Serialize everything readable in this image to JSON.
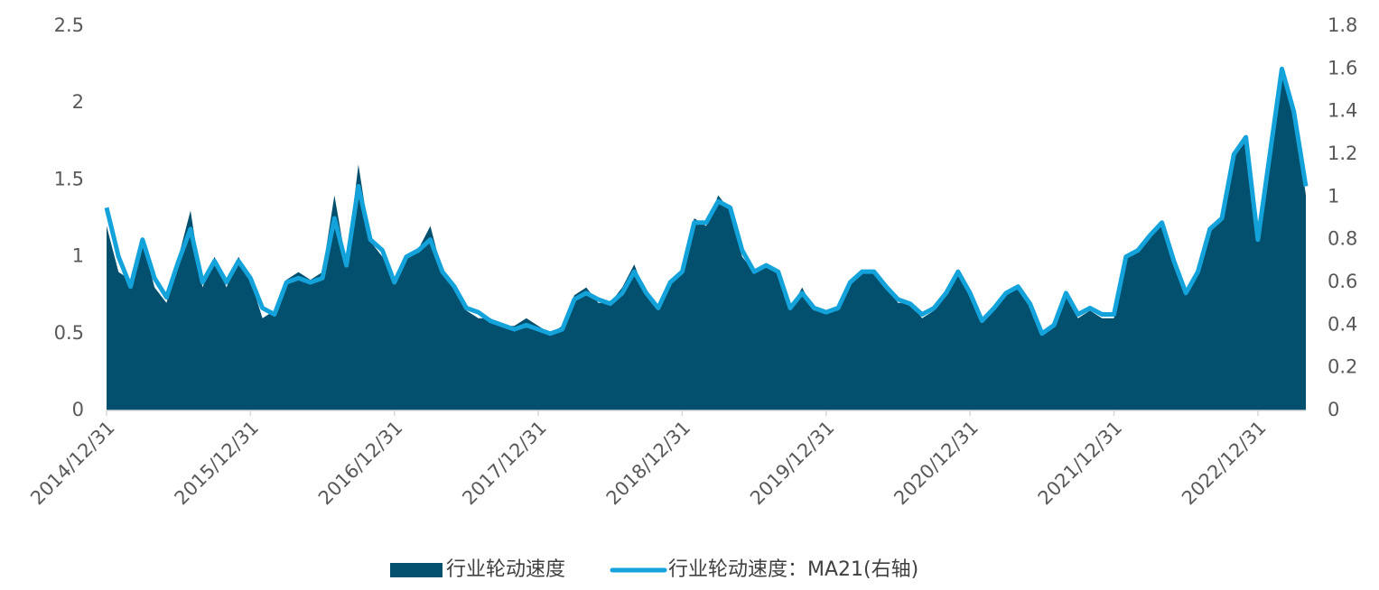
{
  "chart_data": {
    "type": "area_line",
    "x": [
      "2014/12/31",
      "2015/01/31",
      "2015/02/28",
      "2015/03/31",
      "2015/04/30",
      "2015/05/31",
      "2015/06/30",
      "2015/07/31",
      "2015/08/31",
      "2015/09/30",
      "2015/10/31",
      "2015/11/30",
      "2015/12/31",
      "2016/01/31",
      "2016/02/29",
      "2016/03/31",
      "2016/04/30",
      "2016/05/31",
      "2016/06/30",
      "2016/07/31",
      "2016/08/31",
      "2016/09/30",
      "2016/10/31",
      "2016/11/30",
      "2016/12/31",
      "2017/01/31",
      "2017/02/28",
      "2017/03/31",
      "2017/04/30",
      "2017/05/31",
      "2017/06/30",
      "2017/07/31",
      "2017/08/31",
      "2017/09/30",
      "2017/10/31",
      "2017/11/30",
      "2017/12/31",
      "2018/01/31",
      "2018/02/28",
      "2018/03/31",
      "2018/04/30",
      "2018/05/31",
      "2018/06/30",
      "2018/07/31",
      "2018/08/31",
      "2018/09/30",
      "2018/10/31",
      "2018/11/30",
      "2018/12/31",
      "2019/01/31",
      "2019/02/28",
      "2019/03/31",
      "2019/04/30",
      "2019/05/31",
      "2019/06/30",
      "2019/07/31",
      "2019/08/31",
      "2019/09/30",
      "2019/10/31",
      "2019/11/30",
      "2019/12/31",
      "2020/01/31",
      "2020/02/29",
      "2020/03/31",
      "2020/04/30",
      "2020/05/31",
      "2020/06/30",
      "2020/07/31",
      "2020/08/31",
      "2020/09/30",
      "2020/10/31",
      "2020/11/30",
      "2020/12/31",
      "2021/01/31",
      "2021/02/28",
      "2021/03/31",
      "2021/04/30",
      "2021/05/31",
      "2021/06/30",
      "2021/07/31",
      "2021/08/31",
      "2021/09/30",
      "2021/10/31",
      "2021/11/30",
      "2021/12/31",
      "2022/01/31",
      "2022/02/28",
      "2022/03/31",
      "2022/04/30",
      "2022/05/31",
      "2022/06/30",
      "2022/07/31",
      "2022/08/31",
      "2022/09/30",
      "2022/10/31",
      "2022/11/30",
      "2022/12/31",
      "2023/01/31",
      "2023/02/28",
      "2023/03/31",
      "2023/04/30"
    ],
    "series": [
      {
        "name": "行业轮动速度",
        "color": "#02506d",
        "values": [
          1.2,
          0.9,
          0.85,
          1.1,
          0.8,
          0.7,
          1.0,
          1.3,
          0.8,
          1.0,
          0.8,
          1.0,
          0.85,
          0.6,
          0.65,
          0.85,
          0.9,
          0.85,
          0.9,
          1.4,
          0.95,
          1.6,
          1.1,
          1.0,
          0.85,
          1.0,
          1.05,
          1.2,
          0.9,
          0.8,
          0.65,
          0.6,
          0.6,
          0.55,
          0.55,
          0.6,
          0.55,
          0.5,
          0.55,
          0.75,
          0.8,
          0.7,
          0.7,
          0.8,
          0.95,
          0.75,
          0.65,
          0.85,
          0.9,
          1.25,
          1.2,
          1.4,
          1.3,
          1.0,
          0.9,
          0.95,
          0.9,
          0.65,
          0.8,
          0.65,
          0.65,
          0.65,
          0.85,
          0.9,
          0.9,
          0.8,
          0.7,
          0.7,
          0.6,
          0.65,
          0.75,
          0.9,
          0.75,
          0.6,
          0.65,
          0.75,
          0.8,
          0.7,
          0.5,
          0.55,
          0.75,
          0.6,
          0.65,
          0.6,
          0.6,
          1.0,
          1.05,
          1.15,
          1.2,
          0.95,
          0.75,
          0.9,
          1.2,
          1.25,
          1.65,
          1.75,
          1.1,
          1.65,
          2.2,
          1.95,
          1.4
        ]
      },
      {
        "name": "行业轮动速度：MA21(右轴)",
        "color": "#14a2db",
        "axis": "y2",
        "values": [
          0.95,
          0.72,
          0.58,
          0.8,
          0.62,
          0.53,
          0.7,
          0.85,
          0.6,
          0.7,
          0.6,
          0.7,
          0.62,
          0.48,
          0.45,
          0.6,
          0.62,
          0.6,
          0.62,
          0.9,
          0.68,
          1.05,
          0.8,
          0.75,
          0.6,
          0.72,
          0.75,
          0.8,
          0.65,
          0.58,
          0.48,
          0.46,
          0.42,
          0.4,
          0.38,
          0.4,
          0.38,
          0.36,
          0.38,
          0.52,
          0.55,
          0.52,
          0.5,
          0.55,
          0.65,
          0.55,
          0.48,
          0.6,
          0.65,
          0.88,
          0.88,
          0.98,
          0.95,
          0.75,
          0.65,
          0.68,
          0.65,
          0.48,
          0.55,
          0.48,
          0.46,
          0.48,
          0.6,
          0.65,
          0.65,
          0.58,
          0.52,
          0.5,
          0.45,
          0.48,
          0.55,
          0.65,
          0.55,
          0.42,
          0.48,
          0.55,
          0.58,
          0.5,
          0.36,
          0.4,
          0.55,
          0.45,
          0.48,
          0.45,
          0.45,
          0.72,
          0.75,
          0.82,
          0.88,
          0.7,
          0.55,
          0.65,
          0.85,
          0.9,
          1.2,
          1.28,
          0.8,
          1.2,
          1.6,
          1.4,
          1.05
        ]
      }
    ],
    "ylim": [
      0,
      2.5
    ],
    "yticks": [
      0,
      0.5,
      1,
      1.5,
      2,
      2.5
    ],
    "y2lim": [
      0,
      1.8
    ],
    "y2ticks": [
      0,
      0.2,
      0.4,
      0.6,
      0.8,
      1,
      1.2,
      1.4,
      1.6,
      1.8
    ],
    "legend": "bottom"
  }
}
